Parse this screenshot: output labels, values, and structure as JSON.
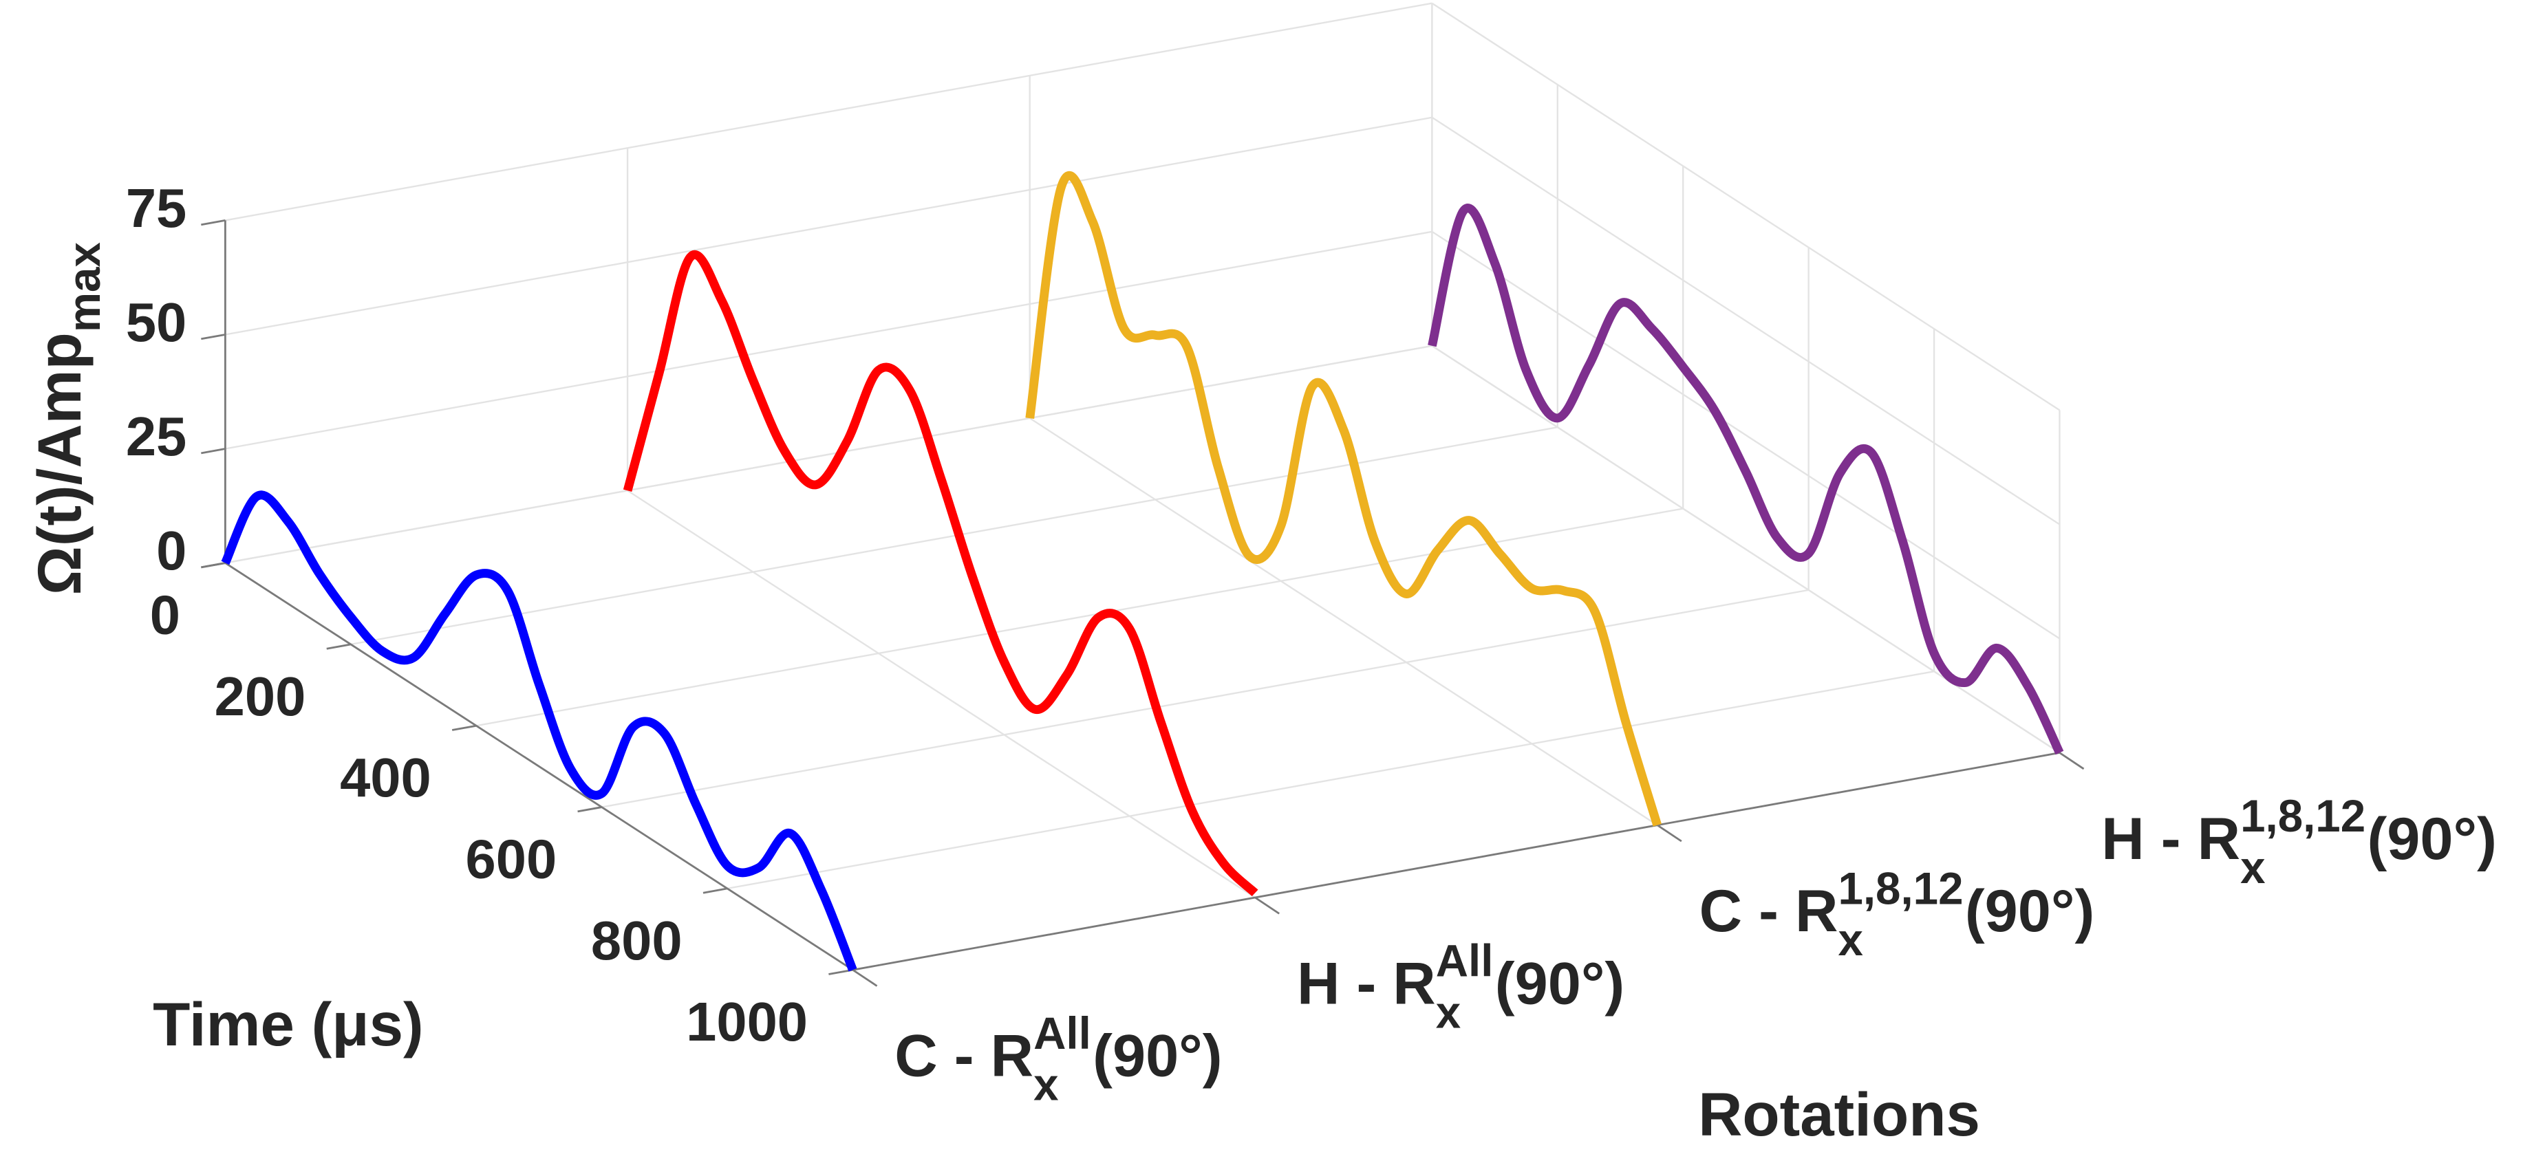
{
  "chart_data": {
    "type": "waterfall3d",
    "zlabel": {
      "text": "Ω(t)/Amp",
      "sub": "max"
    },
    "xlabel": "Time (μs)",
    "clabel": "Rotations",
    "categories": [
      {
        "base": "C - R",
        "sup": "All",
        "sub": "x",
        "tail": "(90°)"
      },
      {
        "base": "H - R",
        "sup": "All",
        "sub": "x",
        "tail": "(90°)"
      },
      {
        "base": "C - R",
        "sup": "1,8,12",
        "sub": "x",
        "tail": "(90°)"
      },
      {
        "base": "H - R",
        "sup": "1,8,12",
        "sub": "x",
        "tail": "(90°)"
      }
    ],
    "x": [
      0,
      50,
      100,
      150,
      200,
      250,
      300,
      350,
      400,
      450,
      500,
      550,
      600,
      650,
      700,
      750,
      800,
      850,
      900,
      950,
      1000
    ],
    "series": [
      {
        "color": "#0000ff",
        "values": [
          0,
          19,
          18,
          11,
          6,
          3,
          6,
          20,
          33,
          34,
          18,
          4,
          3,
          22,
          25,
          14,
          5,
          9,
          21,
          13,
          0
        ]
      },
      {
        "color": "#ff0000",
        "values": [
          0,
          30,
          60,
          55,
          42,
          31,
          28,
          42,
          62,
          62,
          47,
          30,
          16,
          10,
          22,
          39,
          41,
          25,
          10,
          3,
          1
        ]
      },
      {
        "color": "#edb120",
        "values": [
          0,
          55,
          52,
          33,
          36,
          38,
          16,
          1,
          12,
          47,
          42,
          22,
          15,
          29,
          40,
          37,
          34,
          38,
          38,
          18,
          0
        ]
      },
      {
        "color": "#7e2f8e",
        "values": [
          0,
          34,
          27,
          8,
          2,
          18,
          36,
          35,
          31,
          26,
          17,
          7,
          8,
          30,
          39,
          24,
          4,
          2,
          14,
          10,
          0
        ]
      }
    ],
    "xlim": [
      0,
      1000
    ],
    "xticks": [
      0,
      200,
      400,
      600,
      800,
      1000
    ],
    "zlim": [
      0,
      75
    ],
    "zticks": [
      0,
      25,
      50,
      75
    ],
    "grid": true
  }
}
